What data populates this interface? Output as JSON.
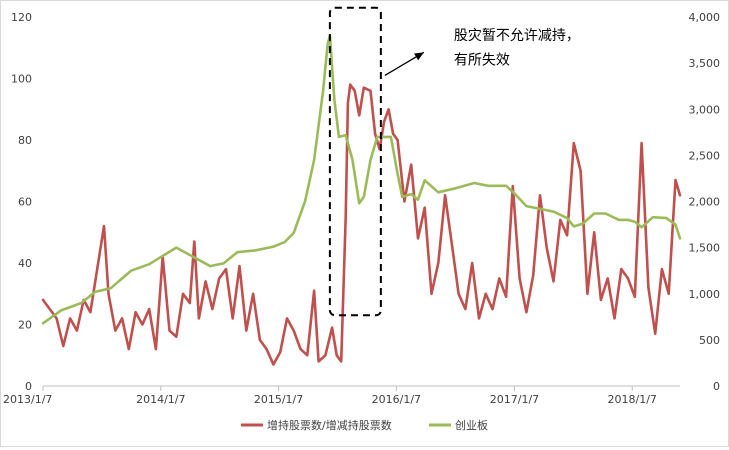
{
  "chart_data": {
    "type": "line",
    "x_ticks": [
      "2013/1/7",
      "2014/1/7",
      "2015/1/7",
      "2016/1/7",
      "2017/1/7",
      "2018/1/7"
    ],
    "y_left": {
      "ylim": [
        0,
        120
      ],
      "ticks": [
        "0",
        "20",
        "40",
        "60",
        "80",
        "100",
        "120"
      ]
    },
    "y_right": {
      "ylim": [
        0,
        4000
      ],
      "ticks": [
        "0",
        "500",
        "1,000",
        "1,500",
        "2,000",
        "2,500",
        "3,000",
        "3,500",
        "4,000"
      ]
    },
    "grid": false,
    "legend_position": "bottom",
    "annotation": {
      "lines": [
        "股灾暂不允许减持，",
        "有所失效"
      ],
      "window": [
        "2015/6/15",
        "2015/11/20"
      ],
      "window_y": [
        23,
        123
      ]
    },
    "series": [
      {
        "name": "增持股票数/增减持股票数",
        "axis": "left",
        "color": "#c0504d",
        "points": [
          [
            "2013-01-07",
            28
          ],
          [
            "2013-01-28",
            25
          ],
          [
            "2013-02-18",
            22
          ],
          [
            "2013-03-11",
            13
          ],
          [
            "2013-04-01",
            22
          ],
          [
            "2013-04-22",
            18
          ],
          [
            "2013-05-13",
            28
          ],
          [
            "2013-06-03",
            24
          ],
          [
            "2013-06-24",
            38
          ],
          [
            "2013-07-15",
            52
          ],
          [
            "2013-07-29",
            30
          ],
          [
            "2013-08-19",
            18
          ],
          [
            "2013-09-09",
            22
          ],
          [
            "2013-09-30",
            12
          ],
          [
            "2013-10-21",
            24
          ],
          [
            "2013-11-11",
            20
          ],
          [
            "2013-12-02",
            25
          ],
          [
            "2013-12-23",
            12
          ],
          [
            "2014-01-13",
            42
          ],
          [
            "2014-02-03",
            18
          ],
          [
            "2014-02-24",
            16
          ],
          [
            "2014-03-17",
            30
          ],
          [
            "2014-04-07",
            27
          ],
          [
            "2014-04-21",
            47
          ],
          [
            "2014-05-05",
            22
          ],
          [
            "2014-05-26",
            34
          ],
          [
            "2014-06-16",
            25
          ],
          [
            "2014-07-07",
            35
          ],
          [
            "2014-07-28",
            38
          ],
          [
            "2014-08-18",
            22
          ],
          [
            "2014-09-08",
            39
          ],
          [
            "2014-09-29",
            18
          ],
          [
            "2014-10-20",
            30
          ],
          [
            "2014-11-10",
            15
          ],
          [
            "2014-12-01",
            12
          ],
          [
            "2014-12-22",
            7
          ],
          [
            "2015-01-12",
            11
          ],
          [
            "2015-02-02",
            22
          ],
          [
            "2015-02-23",
            18
          ],
          [
            "2015-03-16",
            12
          ],
          [
            "2015-04-06",
            10
          ],
          [
            "2015-04-27",
            31
          ],
          [
            "2015-05-11",
            8
          ],
          [
            "2015-06-01",
            10
          ],
          [
            "2015-06-22",
            19
          ],
          [
            "2015-07-06",
            10
          ],
          [
            "2015-07-20",
            8
          ],
          [
            "2015-08-03",
            55
          ],
          [
            "2015-08-10",
            92
          ],
          [
            "2015-08-17",
            98
          ],
          [
            "2015-08-31",
            96
          ],
          [
            "2015-09-14",
            88
          ],
          [
            "2015-09-28",
            97
          ],
          [
            "2015-10-19",
            96
          ],
          [
            "2015-11-02",
            82
          ],
          [
            "2015-11-16",
            77
          ],
          [
            "2015-11-30",
            86
          ],
          [
            "2015-12-14",
            90
          ],
          [
            "2015-12-28",
            82
          ],
          [
            "2016-01-11",
            80
          ],
          [
            "2016-02-01",
            60
          ],
          [
            "2016-02-22",
            72
          ],
          [
            "2016-03-14",
            48
          ],
          [
            "2016-04-04",
            58
          ],
          [
            "2016-04-25",
            30
          ],
          [
            "2016-05-16",
            40
          ],
          [
            "2016-06-06",
            62
          ],
          [
            "2016-06-27",
            46
          ],
          [
            "2016-07-18",
            30
          ],
          [
            "2016-08-08",
            25
          ],
          [
            "2016-08-29",
            40
          ],
          [
            "2016-09-19",
            22
          ],
          [
            "2016-10-10",
            30
          ],
          [
            "2016-10-31",
            25
          ],
          [
            "2016-11-21",
            35
          ],
          [
            "2016-12-12",
            29
          ],
          [
            "2017-01-02",
            65
          ],
          [
            "2017-01-23",
            35
          ],
          [
            "2017-02-13",
            24
          ],
          [
            "2017-03-06",
            36
          ],
          [
            "2017-03-27",
            62
          ],
          [
            "2017-04-17",
            45
          ],
          [
            "2017-05-08",
            34
          ],
          [
            "2017-05-29",
            54
          ],
          [
            "2017-06-19",
            49
          ],
          [
            "2017-07-10",
            79
          ],
          [
            "2017-07-31",
            70
          ],
          [
            "2017-08-21",
            30
          ],
          [
            "2017-09-11",
            50
          ],
          [
            "2017-10-02",
            28
          ],
          [
            "2017-10-23",
            35
          ],
          [
            "2017-11-13",
            22
          ],
          [
            "2017-12-04",
            38
          ],
          [
            "2017-12-25",
            35
          ],
          [
            "2018-01-15",
            29
          ],
          [
            "2018-02-05",
            79
          ],
          [
            "2018-02-26",
            32
          ],
          [
            "2018-03-19",
            17
          ],
          [
            "2018-04-09",
            38
          ],
          [
            "2018-04-30",
            30
          ],
          [
            "2018-05-21",
            67
          ],
          [
            "2018-06-04",
            62
          ]
        ]
      },
      {
        "name": "创业板",
        "axis": "right",
        "color": "#9bbb59",
        "points": [
          [
            "2013-01-07",
            680
          ],
          [
            "2013-03-04",
            820
          ],
          [
            "2013-05-06",
            900
          ],
          [
            "2013-06-17",
            1020
          ],
          [
            "2013-08-05",
            1060
          ],
          [
            "2013-10-07",
            1250
          ],
          [
            "2013-12-02",
            1320
          ],
          [
            "2014-02-24",
            1500
          ],
          [
            "2014-04-28",
            1380
          ],
          [
            "2014-06-09",
            1300
          ],
          [
            "2014-07-21",
            1330
          ],
          [
            "2014-09-01",
            1450
          ],
          [
            "2014-10-27",
            1470
          ],
          [
            "2014-12-22",
            1510
          ],
          [
            "2015-01-26",
            1560
          ],
          [
            "2015-02-23",
            1660
          ],
          [
            "2015-03-30",
            2000
          ],
          [
            "2015-04-27",
            2450
          ],
          [
            "2015-05-25",
            3200
          ],
          [
            "2015-06-08",
            3700
          ],
          [
            "2015-06-15",
            3800
          ],
          [
            "2015-06-29",
            3100
          ],
          [
            "2015-07-13",
            2700
          ],
          [
            "2015-08-03",
            2720
          ],
          [
            "2015-08-24",
            2450
          ],
          [
            "2015-09-14",
            1980
          ],
          [
            "2015-09-28",
            2050
          ],
          [
            "2015-10-19",
            2450
          ],
          [
            "2015-11-09",
            2700
          ],
          [
            "2015-12-21",
            2700
          ],
          [
            "2016-01-11",
            2300
          ],
          [
            "2016-01-25",
            2050
          ],
          [
            "2016-02-22",
            2080
          ],
          [
            "2016-03-14",
            2020
          ],
          [
            "2016-04-04",
            2230
          ],
          [
            "2016-05-16",
            2100
          ],
          [
            "2016-07-04",
            2140
          ],
          [
            "2016-09-05",
            2200
          ],
          [
            "2016-10-17",
            2170
          ],
          [
            "2016-12-12",
            2170
          ],
          [
            "2017-01-09",
            2080
          ],
          [
            "2017-02-13",
            1950
          ],
          [
            "2017-03-27",
            1920
          ],
          [
            "2017-05-08",
            1890
          ],
          [
            "2017-06-19",
            1820
          ],
          [
            "2017-07-10",
            1730
          ],
          [
            "2017-08-07",
            1760
          ],
          [
            "2017-09-11",
            1870
          ],
          [
            "2017-10-16",
            1870
          ],
          [
            "2017-11-27",
            1800
          ],
          [
            "2017-12-25",
            1800
          ],
          [
            "2018-01-15",
            1780
          ],
          [
            "2018-02-05",
            1720
          ],
          [
            "2018-03-12",
            1830
          ],
          [
            "2018-04-23",
            1820
          ],
          [
            "2018-05-21",
            1750
          ],
          [
            "2018-06-04",
            1600
          ]
        ]
      }
    ]
  }
}
